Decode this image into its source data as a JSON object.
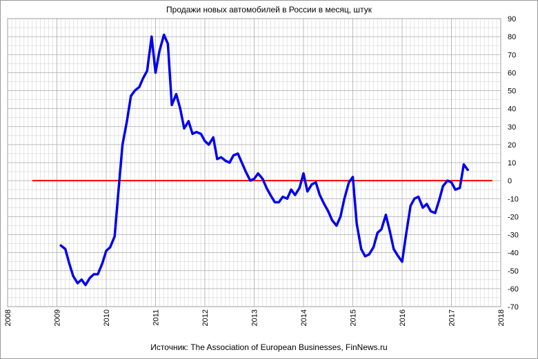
{
  "chart_data": {
    "type": "line",
    "title": "Продажи новых автомобилей в России в месяц, штук",
    "source": "Источник: The Association of European Businesses, FinNews.ru",
    "xlabel": "",
    "ylabel": "",
    "xlim": [
      2008,
      2018
    ],
    "ylim": [
      -70,
      90
    ],
    "x_ticks": [
      "2008",
      "2009",
      "2010",
      "2011",
      "2012",
      "2013",
      "2014",
      "2015",
      "2016",
      "2017",
      "2018"
    ],
    "y_ticks": [
      "90",
      "80",
      "70",
      "60",
      "50",
      "40",
      "30",
      "20",
      "10",
      "0",
      "-10",
      "-20",
      "-30",
      "-40",
      "-50",
      "-60",
      "-70"
    ],
    "grid": true,
    "y_axis_position": "right",
    "colors": {
      "series": "#0000ee",
      "zero_line": "#ff0000",
      "grid": "#c0c0c0"
    },
    "zero_line": {
      "value": 0,
      "x_range": [
        2008.5,
        2017.83
      ]
    },
    "series": [
      {
        "values": [
          [
            2009.08,
            -36
          ],
          [
            2009.17,
            -38
          ],
          [
            2009.25,
            -46
          ],
          [
            2009.33,
            -53
          ],
          [
            2009.42,
            -57
          ],
          [
            2009.5,
            -55
          ],
          [
            2009.58,
            -58
          ],
          [
            2009.67,
            -54
          ],
          [
            2009.75,
            -52
          ],
          [
            2009.83,
            -52
          ],
          [
            2009.92,
            -46
          ],
          [
            2010.0,
            -39
          ],
          [
            2010.08,
            -37
          ],
          [
            2010.17,
            -31
          ],
          [
            2010.25,
            -5
          ],
          [
            2010.33,
            20
          ],
          [
            2010.42,
            33
          ],
          [
            2010.5,
            47
          ],
          [
            2010.58,
            50
          ],
          [
            2010.67,
            52
          ],
          [
            2010.75,
            57
          ],
          [
            2010.83,
            61
          ],
          [
            2010.92,
            80
          ],
          [
            2011.0,
            60
          ],
          [
            2011.08,
            72
          ],
          [
            2011.17,
            81
          ],
          [
            2011.25,
            76
          ],
          [
            2011.33,
            42
          ],
          [
            2011.42,
            48
          ],
          [
            2011.5,
            40
          ],
          [
            2011.58,
            29
          ],
          [
            2011.67,
            33
          ],
          [
            2011.75,
            26
          ],
          [
            2011.83,
            27
          ],
          [
            2011.92,
            26
          ],
          [
            2012.0,
            22
          ],
          [
            2012.08,
            20
          ],
          [
            2012.17,
            24
          ],
          [
            2012.25,
            12
          ],
          [
            2012.33,
            13
          ],
          [
            2012.42,
            11
          ],
          [
            2012.5,
            10
          ],
          [
            2012.58,
            14
          ],
          [
            2012.67,
            15
          ],
          [
            2012.75,
            10
          ],
          [
            2012.83,
            5
          ],
          [
            2012.92,
            0
          ],
          [
            2013.0,
            1
          ],
          [
            2013.08,
            4
          ],
          [
            2013.17,
            1
          ],
          [
            2013.25,
            -4
          ],
          [
            2013.33,
            -8
          ],
          [
            2013.42,
            -12
          ],
          [
            2013.5,
            -12
          ],
          [
            2013.58,
            -9
          ],
          [
            2013.67,
            -10
          ],
          [
            2013.75,
            -5
          ],
          [
            2013.83,
            -8
          ],
          [
            2013.92,
            -4
          ],
          [
            2014.0,
            4
          ],
          [
            2014.08,
            -6
          ],
          [
            2014.17,
            -2
          ],
          [
            2014.25,
            -1
          ],
          [
            2014.33,
            -8
          ],
          [
            2014.42,
            -13
          ],
          [
            2014.5,
            -17
          ],
          [
            2014.58,
            -22
          ],
          [
            2014.67,
            -25
          ],
          [
            2014.75,
            -20
          ],
          [
            2014.83,
            -10
          ],
          [
            2014.92,
            -1
          ],
          [
            2015.0,
            2
          ],
          [
            2015.08,
            -24
          ],
          [
            2015.17,
            -38
          ],
          [
            2015.25,
            -42
          ],
          [
            2015.33,
            -41
          ],
          [
            2015.42,
            -37
          ],
          [
            2015.5,
            -29
          ],
          [
            2015.58,
            -27
          ],
          [
            2015.67,
            -19
          ],
          [
            2015.75,
            -28
          ],
          [
            2015.83,
            -38
          ],
          [
            2015.92,
            -42
          ],
          [
            2016.0,
            -45
          ],
          [
            2016.08,
            -30
          ],
          [
            2016.17,
            -14
          ],
          [
            2016.25,
            -10
          ],
          [
            2016.33,
            -9
          ],
          [
            2016.42,
            -15
          ],
          [
            2016.5,
            -13
          ],
          [
            2016.58,
            -17
          ],
          [
            2016.67,
            -18
          ],
          [
            2016.75,
            -11
          ],
          [
            2016.83,
            -3
          ],
          [
            2016.92,
            0
          ],
          [
            2017.0,
            -1
          ],
          [
            2017.08,
            -5
          ],
          [
            2017.17,
            -4
          ],
          [
            2017.25,
            9
          ],
          [
            2017.33,
            6
          ]
        ]
      }
    ]
  }
}
